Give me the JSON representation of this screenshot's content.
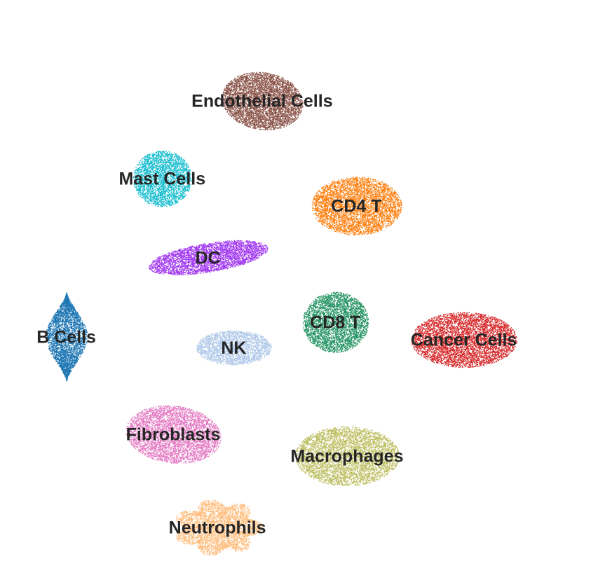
{
  "chart_data": {
    "type": "scatter",
    "title": "",
    "xlabel": "",
    "ylabel": "",
    "axes_visible": false,
    "grid": false,
    "legend": "none",
    "clusters": [
      {
        "label": "Endothelial Cells",
        "color": "#8c564b",
        "center": [
          0.442,
          0.873
        ],
        "spread": [
          0.077,
          0.055
        ],
        "angle": -0.15,
        "shape": "ellipse",
        "density": 5200
      },
      {
        "label": "Mast Cells",
        "color": "#17becf",
        "center": [
          0.252,
          0.723
        ],
        "spread": [
          0.055,
          0.054
        ],
        "angle": 0.0,
        "shape": "ellipse",
        "density": 3000
      },
      {
        "label": "CD4 T",
        "color": "#ff7f0e",
        "center": [
          0.621,
          0.67
        ],
        "spread": [
          0.085,
          0.056
        ],
        "angle": 0.0,
        "shape": "ellipse",
        "density": 4600
      },
      {
        "label": "DC",
        "color": "#a23af0",
        "center": [
          0.339,
          0.57
        ],
        "spread": [
          0.114,
          0.028
        ],
        "angle": 0.16,
        "shape": "ellipse",
        "density": 3800
      },
      {
        "label": "B Cells",
        "color": "#1f77b4",
        "center": [
          0.07,
          0.417
        ],
        "spread": [
          0.04,
          0.085
        ],
        "angle": 0.0,
        "shape": "spindle",
        "density": 3600
      },
      {
        "label": "CD8 T",
        "color": "#229361",
        "center": [
          0.581,
          0.445
        ],
        "spread": [
          0.062,
          0.058
        ],
        "angle": 0.0,
        "shape": "ellipse",
        "density": 3600
      },
      {
        "label": "Cancer Cells",
        "color": "#d62728",
        "center": [
          0.825,
          0.411
        ],
        "spread": [
          0.1,
          0.053
        ],
        "angle": 0.0,
        "shape": "ellipse",
        "density": 5200
      },
      {
        "label": "NK",
        "color": "#aec7e8",
        "center": [
          0.388,
          0.396
        ],
        "spread": [
          0.071,
          0.033
        ],
        "angle": 0.0,
        "shape": "ellipse",
        "density": 2400
      },
      {
        "label": "Fibroblasts",
        "color": "#e377c2",
        "center": [
          0.273,
          0.228
        ],
        "spread": [
          0.09,
          0.055
        ],
        "angle": -0.12,
        "shape": "ellipse",
        "density": 4400
      },
      {
        "label": "Macrophages",
        "color": "#bcbd5e",
        "center": [
          0.603,
          0.186
        ],
        "spread": [
          0.098,
          0.057
        ],
        "angle": 0.0,
        "shape": "ellipse",
        "density": 4800
      },
      {
        "label": "Neutrophils",
        "color": "#ffbb78",
        "center": [
          0.357,
          0.048
        ],
        "spread": [
          0.085,
          0.055
        ],
        "angle": 0.0,
        "shape": "star",
        "density": 3600
      }
    ],
    "xlim": [
      0,
      1
    ],
    "ylim": [
      0,
      1
    ]
  }
}
